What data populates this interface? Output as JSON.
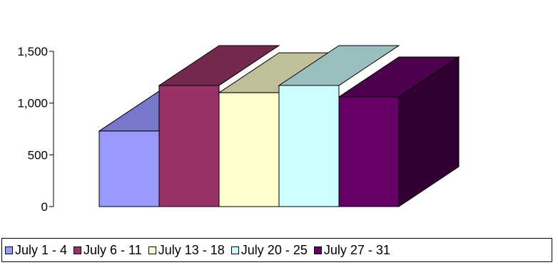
{
  "chart_data": {
    "type": "bar",
    "style": "3d-stacked-depth",
    "categories": [
      ""
    ],
    "series": [
      {
        "name": "July 1 - 4",
        "values": [
          730
        ],
        "color": "#9999FF",
        "top_color": "#7777CC",
        "side_color": "#5A5AA0"
      },
      {
        "name": "July 6 - 11",
        "values": [
          1170
        ],
        "color": "#993366",
        "top_color": "#73284D",
        "side_color": "#5A1F3C"
      },
      {
        "name": "July 13 - 18",
        "values": [
          1100
        ],
        "color": "#FFFFCC",
        "top_color": "#BFBF99",
        "side_color": "#99997A"
      },
      {
        "name": "July 20 - 25",
        "values": [
          1170
        ],
        "color": "#CCFFFF",
        "top_color": "#99BFBF",
        "side_color": "#6E8C8C"
      },
      {
        "name": "July 27 - 31",
        "values": [
          1060
        ],
        "color": "#660066",
        "top_color": "#4D004D",
        "side_color": "#330033"
      }
    ],
    "yticks": [
      "0",
      "500",
      "1,000",
      "1,500"
    ],
    "ytick_values": [
      0,
      500,
      1000,
      1500
    ],
    "ylim": [
      0,
      1500
    ],
    "grid": false,
    "legend_position": "bottom",
    "title": "",
    "xlabel": "",
    "ylabel": ""
  }
}
